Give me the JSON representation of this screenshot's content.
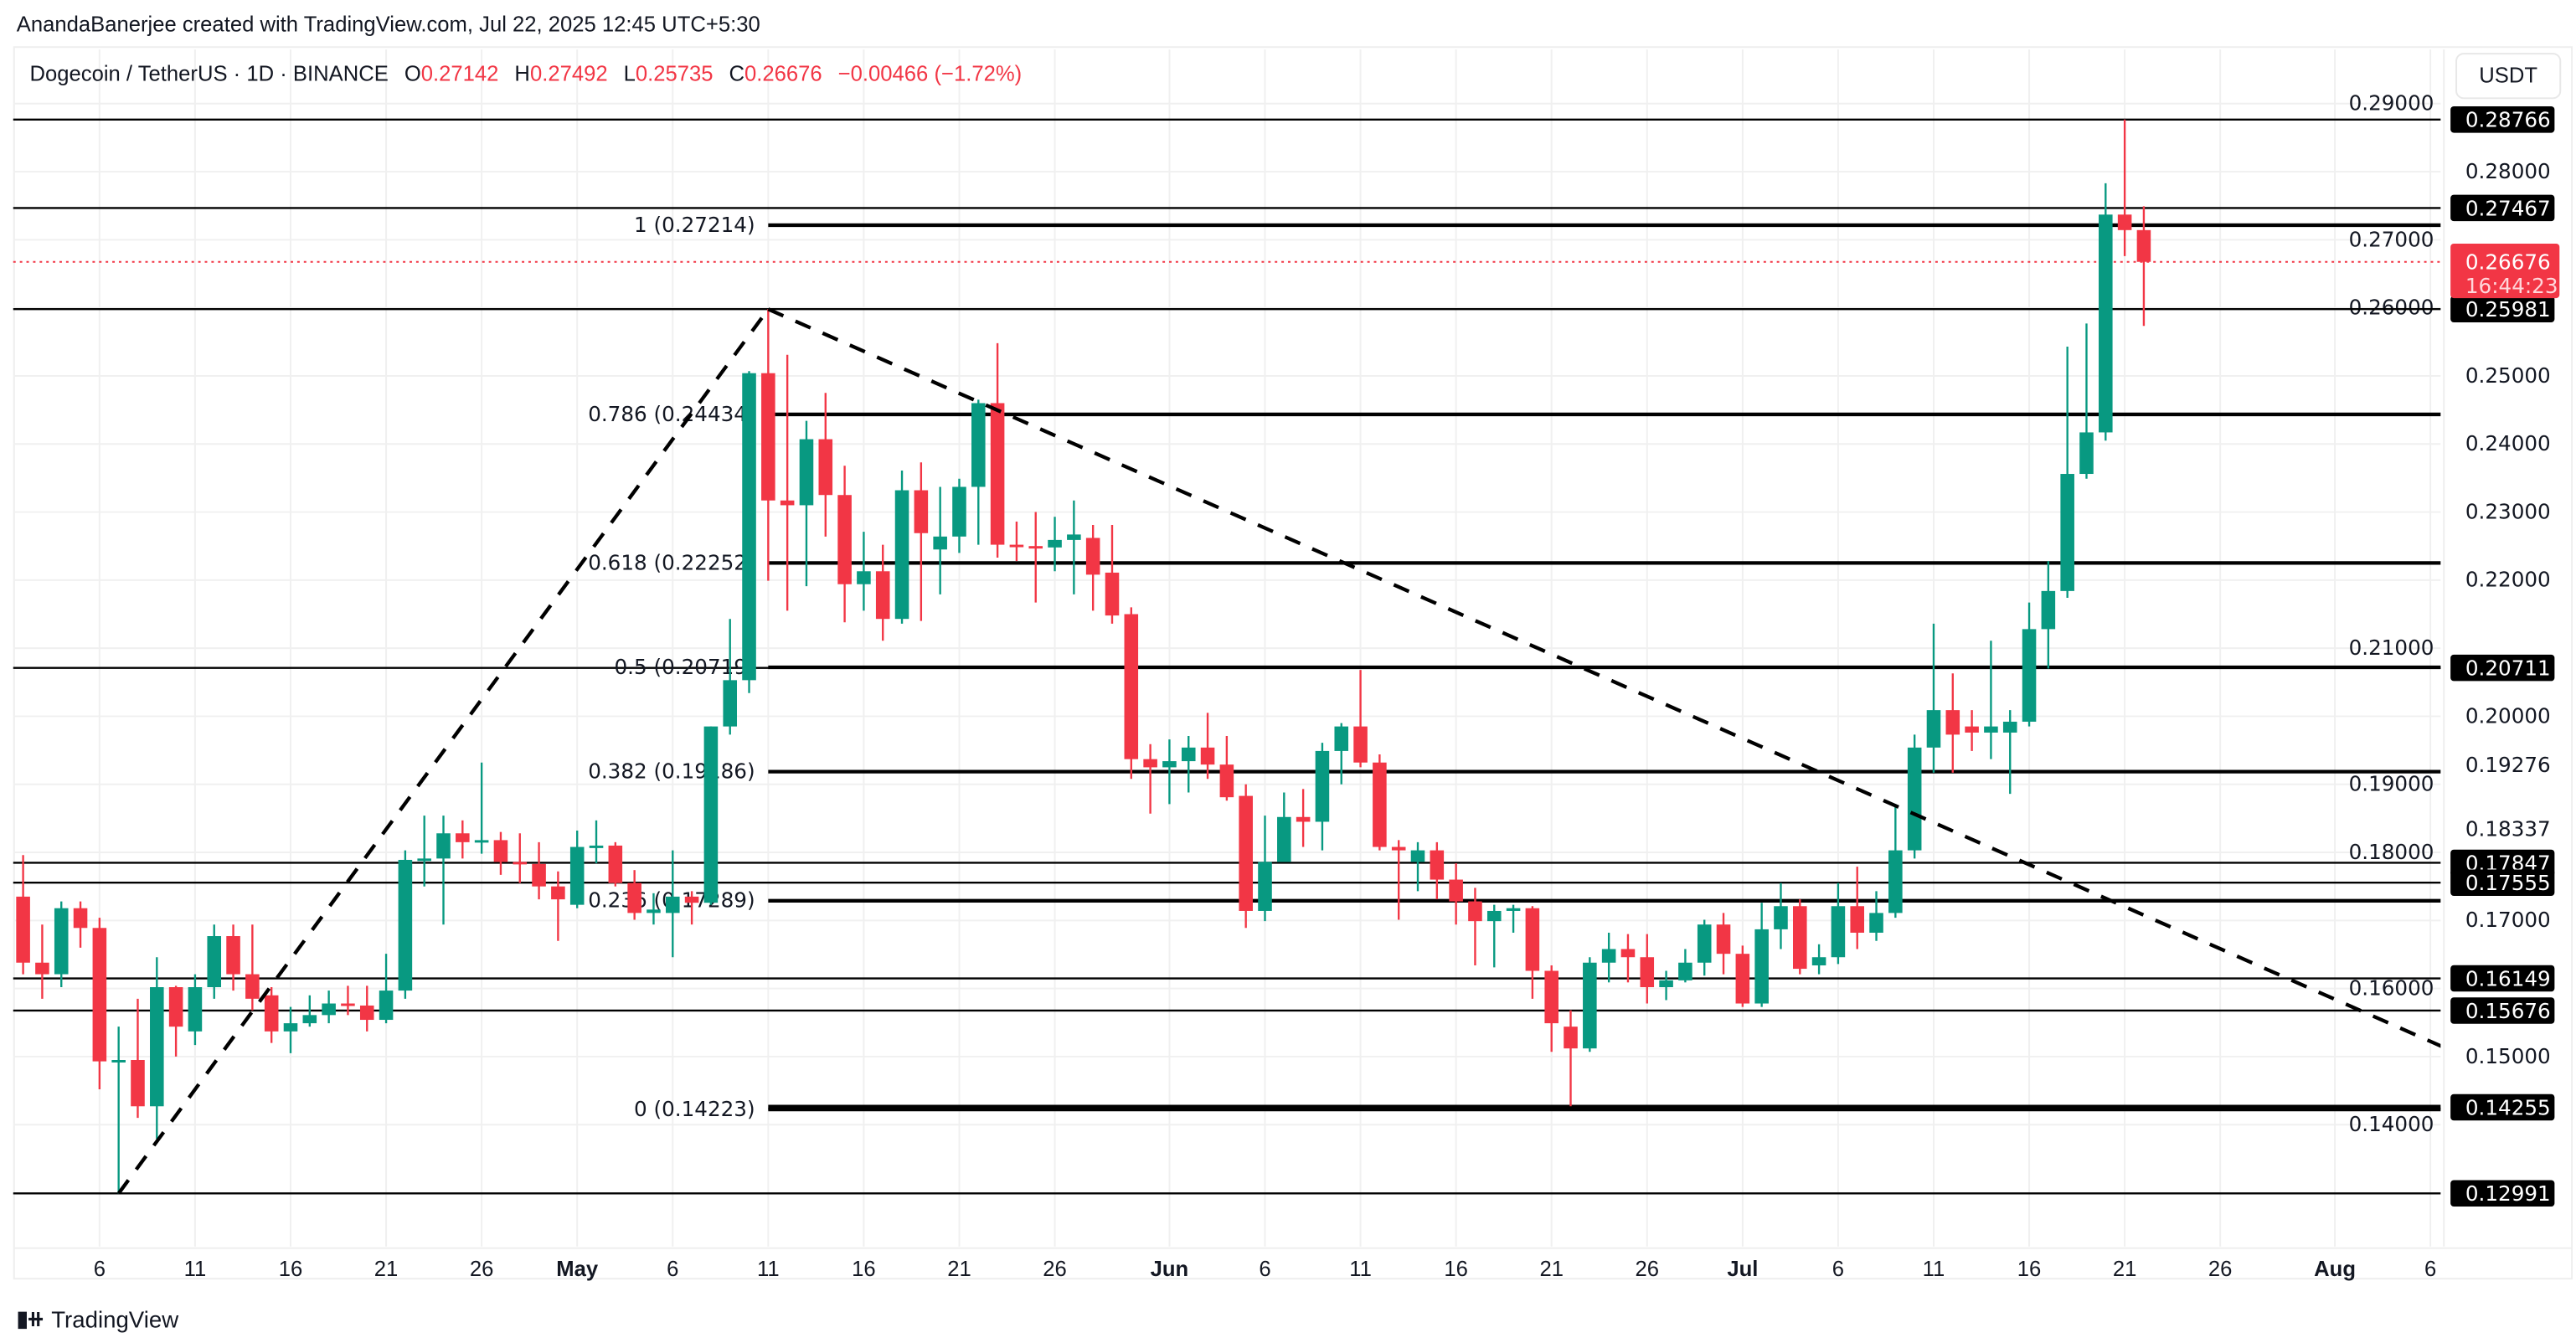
{
  "header": {
    "credit": "AnandaBanerjee created with TradingView.com, Jul 22, 2025 12:45 UTC+5:30",
    "symbol": "Dogecoin / TetherUS · 1D · BINANCE",
    "o_label": "O",
    "o_value": "0.27142",
    "h_label": "H",
    "h_value": "0.27492",
    "l_label": "L",
    "l_value": "0.25735",
    "c_label": "C",
    "c_value": "0.26676",
    "change": "−0.00466 (−1.72%)"
  },
  "price_axis": {
    "currency": "USDT"
  },
  "footer": {
    "brand": "TradingView"
  },
  "colors": {
    "up": "#089981",
    "down": "#f23645",
    "line": "#000000",
    "grid": "#f0f0f0"
  },
  "chart_data": {
    "type": "candlestick",
    "ylim": [
      0.1215,
      0.2935
    ],
    "grid": true,
    "y_ticks": [
      "0.14000",
      "0.15000",
      "0.16000",
      "0.17000",
      "0.18000",
      "0.19000",
      "0.20000",
      "0.21000",
      "0.22000",
      "0.23000",
      "0.24000",
      "0.25000",
      "0.26000",
      "0.27000",
      "0.28000",
      "0.29000"
    ],
    "x_ticks": [
      {
        "label": "6",
        "date": "2025-04-06"
      },
      {
        "label": "11",
        "date": "2025-04-11"
      },
      {
        "label": "16",
        "date": "2025-04-16"
      },
      {
        "label": "21",
        "date": "2025-04-21"
      },
      {
        "label": "26",
        "date": "2025-04-26"
      },
      {
        "label": "May",
        "date": "2025-05-01"
      },
      {
        "label": "6",
        "date": "2025-05-06"
      },
      {
        "label": "11",
        "date": "2025-05-11"
      },
      {
        "label": "16",
        "date": "2025-05-16"
      },
      {
        "label": "21",
        "date": "2025-05-21"
      },
      {
        "label": "26",
        "date": "2025-05-26"
      },
      {
        "label": "Jun",
        "date": "2025-06-01"
      },
      {
        "label": "6",
        "date": "2025-06-06"
      },
      {
        "label": "11",
        "date": "2025-06-11"
      },
      {
        "label": "16",
        "date": "2025-06-16"
      },
      {
        "label": "21",
        "date": "2025-06-21"
      },
      {
        "label": "26",
        "date": "2025-06-26"
      },
      {
        "label": "Jul",
        "date": "2025-07-01"
      },
      {
        "label": "6",
        "date": "2025-07-06"
      },
      {
        "label": "11",
        "date": "2025-07-11"
      },
      {
        "label": "16",
        "date": "2025-07-16"
      },
      {
        "label": "21",
        "date": "2025-07-21"
      },
      {
        "label": "26",
        "date": "2025-07-26"
      },
      {
        "label": "Aug",
        "date": "2025-08-01"
      },
      {
        "label": "6",
        "date": "2025-08-06"
      }
    ],
    "columns": [
      "date",
      "open",
      "high",
      "low",
      "close"
    ],
    "candles": [
      [
        "2025-04-02",
        0.1735,
        0.1796,
        0.1621,
        0.1638
      ],
      [
        "2025-04-03",
        0.1638,
        0.1694,
        0.1585,
        0.1621
      ],
      [
        "2025-04-04",
        0.1621,
        0.1728,
        0.1602,
        0.1718
      ],
      [
        "2025-04-05",
        0.1718,
        0.1728,
        0.166,
        0.1689
      ],
      [
        "2025-04-06",
        0.1689,
        0.1704,
        0.1452,
        0.1493
      ],
      [
        "2025-04-07",
        0.1493,
        0.1544,
        0.1299,
        0.1495
      ],
      [
        "2025-04-08",
        0.1495,
        0.1585,
        0.141,
        0.1427
      ],
      [
        "2025-04-09",
        0.1427,
        0.1646,
        0.1379,
        0.1602
      ],
      [
        "2025-04-10",
        0.1602,
        0.1604,
        0.15,
        0.1544
      ],
      [
        "2025-04-11",
        0.1537,
        0.1621,
        0.1517,
        0.1602
      ],
      [
        "2025-04-12",
        0.1602,
        0.1694,
        0.1585,
        0.1677
      ],
      [
        "2025-04-13",
        0.1677,
        0.1694,
        0.1597,
        0.1621
      ],
      [
        "2025-04-14",
        0.1621,
        0.1694,
        0.1568,
        0.1585
      ],
      [
        "2025-04-15",
        0.159,
        0.1602,
        0.152,
        0.1537
      ],
      [
        "2025-04-16",
        0.1537,
        0.1573,
        0.1505,
        0.1549
      ],
      [
        "2025-04-17",
        0.1549,
        0.159,
        0.1544,
        0.1561
      ],
      [
        "2025-04-18",
        0.1561,
        0.1597,
        0.1549,
        0.1578
      ],
      [
        "2025-04-19",
        0.1578,
        0.1604,
        0.1561,
        0.1575
      ],
      [
        "2025-04-20",
        0.1575,
        0.1604,
        0.1537,
        0.1554
      ],
      [
        "2025-04-21",
        0.1554,
        0.1651,
        0.1549,
        0.1597
      ],
      [
        "2025-04-22",
        0.1597,
        0.1803,
        0.1585,
        0.1789
      ],
      [
        "2025-04-23",
        0.1789,
        0.1854,
        0.175,
        0.1791
      ],
      [
        "2025-04-24",
        0.1791,
        0.1854,
        0.1694,
        0.1828
      ],
      [
        "2025-04-25",
        0.1828,
        0.1847,
        0.1791,
        0.1815
      ],
      [
        "2025-04-26",
        0.1815,
        0.1932,
        0.1798,
        0.1818
      ],
      [
        "2025-04-27",
        0.1818,
        0.183,
        0.1767,
        0.1786
      ],
      [
        "2025-04-28",
        0.1786,
        0.1828,
        0.1755,
        0.1783
      ],
      [
        "2025-04-29",
        0.1783,
        0.1815,
        0.1731,
        0.175
      ],
      [
        "2025-04-30",
        0.175,
        0.1772,
        0.167,
        0.1731
      ],
      [
        "2025-05-01",
        0.1723,
        0.1832,
        0.1718,
        0.1808
      ],
      [
        "2025-05-02",
        0.1808,
        0.1847,
        0.1784,
        0.181
      ],
      [
        "2025-05-03",
        0.181,
        0.1815,
        0.175,
        0.1755
      ],
      [
        "2025-05-04",
        0.1755,
        0.1774,
        0.1701,
        0.1711
      ],
      [
        "2025-05-05",
        0.1711,
        0.174,
        0.1694,
        0.1716
      ],
      [
        "2025-05-06",
        0.1711,
        0.1803,
        0.1646,
        0.1735
      ],
      [
        "2025-05-07",
        0.1735,
        0.1743,
        0.1694,
        0.1726
      ],
      [
        "2025-05-08",
        0.1726,
        0.1985,
        0.1723,
        0.1985
      ],
      [
        "2025-05-09",
        0.1985,
        0.2143,
        0.1973,
        0.2053
      ],
      [
        "2025-05-10",
        0.2053,
        0.2507,
        0.2034,
        0.2504
      ],
      [
        "2025-05-11",
        0.2504,
        0.2598,
        0.2199,
        0.2317
      ],
      [
        "2025-05-12",
        0.2317,
        0.2531,
        0.2155,
        0.231
      ],
      [
        "2025-05-13",
        0.231,
        0.2434,
        0.2191,
        0.2407
      ],
      [
        "2025-05-14",
        0.2407,
        0.2475,
        0.2264,
        0.2325
      ],
      [
        "2025-05-15",
        0.2325,
        0.2368,
        0.2138,
        0.2194
      ],
      [
        "2025-05-16",
        0.2194,
        0.2271,
        0.2155,
        0.2213
      ],
      [
        "2025-05-17",
        0.2213,
        0.2252,
        0.2111,
        0.2143
      ],
      [
        "2025-05-18",
        0.2143,
        0.2361,
        0.2136,
        0.2332
      ],
      [
        "2025-05-19",
        0.2332,
        0.2373,
        0.214,
        0.2269
      ],
      [
        "2025-05-20",
        0.2245,
        0.2337,
        0.2179,
        0.2264
      ],
      [
        "2025-05-21",
        0.2264,
        0.2349,
        0.224,
        0.2337
      ],
      [
        "2025-05-22",
        0.2337,
        0.2465,
        0.2252,
        0.246
      ],
      [
        "2025-05-23",
        0.246,
        0.2548,
        0.2233,
        0.2252
      ],
      [
        "2025-05-24",
        0.2252,
        0.2286,
        0.2228,
        0.225
      ],
      [
        "2025-05-25",
        0.225,
        0.23,
        0.2167,
        0.2248
      ],
      [
        "2025-05-26",
        0.2248,
        0.2293,
        0.2213,
        0.2259
      ],
      [
        "2025-05-27",
        0.2259,
        0.2317,
        0.2179,
        0.2267
      ],
      [
        "2025-05-28",
        0.2262,
        0.2281,
        0.2155,
        0.2208
      ],
      [
        "2025-05-29",
        0.2211,
        0.2281,
        0.2136,
        0.2148
      ],
      [
        "2025-05-30",
        0.215,
        0.216,
        0.1908,
        0.1937
      ],
      [
        "2025-05-31",
        0.1937,
        0.1959,
        0.1857,
        0.1925
      ],
      [
        "2025-06-01",
        0.1925,
        0.1966,
        0.1871,
        0.1934
      ],
      [
        "2025-06-02",
        0.1934,
        0.1971,
        0.1888,
        0.1954
      ],
      [
        "2025-06-03",
        0.1954,
        0.2005,
        0.1908,
        0.1929
      ],
      [
        "2025-06-04",
        0.1929,
        0.1971,
        0.1876,
        0.1881
      ],
      [
        "2025-06-05",
        0.1883,
        0.19,
        0.1689,
        0.1714
      ],
      [
        "2025-06-06",
        0.1714,
        0.1854,
        0.1699,
        0.1786
      ],
      [
        "2025-06-07",
        0.1786,
        0.1888,
        0.1796,
        0.1852
      ],
      [
        "2025-06-08",
        0.1852,
        0.1893,
        0.1808,
        0.1845
      ],
      [
        "2025-06-09",
        0.1845,
        0.1961,
        0.1803,
        0.1949
      ],
      [
        "2025-06-10",
        0.1949,
        0.199,
        0.19,
        0.1985
      ],
      [
        "2025-06-11",
        0.1985,
        0.2068,
        0.1925,
        0.1932
      ],
      [
        "2025-06-12",
        0.1932,
        0.1944,
        0.1803,
        0.1808
      ],
      [
        "2025-06-13",
        0.1808,
        0.1818,
        0.1701,
        0.1803
      ],
      [
        "2025-06-14",
        0.1786,
        0.1815,
        0.1743,
        0.1803
      ],
      [
        "2025-06-15",
        0.1803,
        0.1815,
        0.1731,
        0.176
      ],
      [
        "2025-06-16",
        0.176,
        0.1784,
        0.1694,
        0.1728
      ],
      [
        "2025-06-17",
        0.1728,
        0.1748,
        0.1634,
        0.1699
      ],
      [
        "2025-06-18",
        0.1699,
        0.1723,
        0.1631,
        0.1714
      ],
      [
        "2025-06-19",
        0.1714,
        0.1723,
        0.1682,
        0.1718
      ],
      [
        "2025-06-20",
        0.1718,
        0.1721,
        0.1585,
        0.1626
      ],
      [
        "2025-06-21",
        0.1626,
        0.1634,
        0.1507,
        0.1549
      ],
      [
        "2025-06-22",
        0.1544,
        0.1568,
        0.1427,
        0.1512
      ],
      [
        "2025-06-23",
        0.1512,
        0.1646,
        0.1507,
        0.1638
      ],
      [
        "2025-06-24",
        0.1638,
        0.1682,
        0.1609,
        0.1658
      ],
      [
        "2025-06-25",
        0.1658,
        0.168,
        0.1609,
        0.1646
      ],
      [
        "2025-06-26",
        0.1646,
        0.168,
        0.1578,
        0.1602
      ],
      [
        "2025-06-27",
        0.1602,
        0.1626,
        0.1583,
        0.1612
      ],
      [
        "2025-06-28",
        0.1612,
        0.1658,
        0.1609,
        0.1638
      ],
      [
        "2025-06-29",
        0.1638,
        0.1701,
        0.1619,
        0.1694
      ],
      [
        "2025-06-30",
        0.1694,
        0.1711,
        0.1621,
        0.1651
      ],
      [
        "2025-07-01",
        0.1651,
        0.1663,
        0.1573,
        0.1578
      ],
      [
        "2025-07-02",
        0.1578,
        0.1726,
        0.1573,
        0.1687
      ],
      [
        "2025-07-03",
        0.1687,
        0.1755,
        0.1658,
        0.1721
      ],
      [
        "2025-07-04",
        0.1721,
        0.1731,
        0.1621,
        0.1629
      ],
      [
        "2025-07-05",
        0.1634,
        0.1665,
        0.1621,
        0.1646
      ],
      [
        "2025-07-06",
        0.1646,
        0.1755,
        0.1636,
        0.1721
      ],
      [
        "2025-07-07",
        0.1721,
        0.1779,
        0.1658,
        0.1682
      ],
      [
        "2025-07-08",
        0.1682,
        0.1743,
        0.167,
        0.1711
      ],
      [
        "2025-07-09",
        0.1711,
        0.1871,
        0.1704,
        0.1803
      ],
      [
        "2025-07-10",
        0.1803,
        0.1973,
        0.1791,
        0.1954
      ],
      [
        "2025-07-11",
        0.1954,
        0.2136,
        0.1917,
        0.2009
      ],
      [
        "2025-07-12",
        0.2009,
        0.2063,
        0.1917,
        0.1973
      ],
      [
        "2025-07-13",
        0.1985,
        0.2009,
        0.1949,
        0.1976
      ],
      [
        "2025-07-14",
        0.1976,
        0.2111,
        0.1937,
        0.1985
      ],
      [
        "2025-07-15",
        0.1976,
        0.2009,
        0.1886,
        0.1992
      ],
      [
        "2025-07-16",
        0.1992,
        0.2167,
        0.1985,
        0.2128
      ],
      [
        "2025-07-17",
        0.2128,
        0.2228,
        0.207,
        0.2184
      ],
      [
        "2025-07-18",
        0.2184,
        0.2543,
        0.2174,
        0.2356
      ],
      [
        "2025-07-19",
        0.2356,
        0.2577,
        0.2349,
        0.2417
      ],
      [
        "2025-07-20",
        0.2417,
        0.2783,
        0.2405,
        0.2737
      ],
      [
        "2025-07-21",
        0.2737,
        0.28766,
        0.2676,
        0.27142
      ],
      [
        "2025-07-22",
        0.27142,
        0.27492,
        0.25735,
        0.26676
      ]
    ],
    "horizontal_lines": [
      {
        "price": 0.28766,
        "label": "0.28766"
      },
      {
        "price": 0.27467,
        "label": "0.27467"
      },
      {
        "price": 0.25981,
        "label": "0.25981"
      },
      {
        "price": 0.20711,
        "label": "0.20711"
      },
      {
        "price": 0.17847,
        "label": "0.17847"
      },
      {
        "price": 0.17555,
        "label": "0.17555"
      },
      {
        "price": 0.16149,
        "label": "0.16149"
      },
      {
        "price": 0.15676,
        "label": "0.15676"
      },
      {
        "price": 0.14255,
        "label": "0.14255",
        "from": "2025-05-11"
      },
      {
        "price": 0.12991,
        "label": "0.12991"
      }
    ],
    "axis_plain_labels": [
      {
        "price": 0.19276,
        "label": "0.19276"
      },
      {
        "price": 0.18337,
        "label": "0.18337"
      }
    ],
    "fib_retracement": {
      "start_date": "2025-05-11",
      "levels": [
        {
          "price": 0.27214,
          "label": "1 (0.27214)"
        },
        {
          "price": 0.24434,
          "label": "0.786 (0.24434)"
        },
        {
          "price": 0.22252,
          "label": "0.618 (0.22252)"
        },
        {
          "price": 0.20719,
          "label": "0.5 (0.20719)"
        },
        {
          "price": 0.19186,
          "label": "0.382 (0.19186)"
        },
        {
          "price": 0.17289,
          "label": "0.236 (0.17289)"
        },
        {
          "price": 0.14223,
          "label": "0 (0.14223)"
        }
      ]
    },
    "trendlines": [
      {
        "from": [
          "2025-04-07",
          0.1299
        ],
        "to": [
          "2025-05-11",
          0.2598
        ],
        "style": "dashed"
      },
      {
        "from": [
          "2025-05-11",
          0.2598
        ],
        "to": [
          "2025-08-07",
          0.151
        ],
        "style": "dashed"
      }
    ],
    "last_price": {
      "price": 0.26676,
      "label": "0.26676",
      "countdown": "16:44:23"
    }
  }
}
